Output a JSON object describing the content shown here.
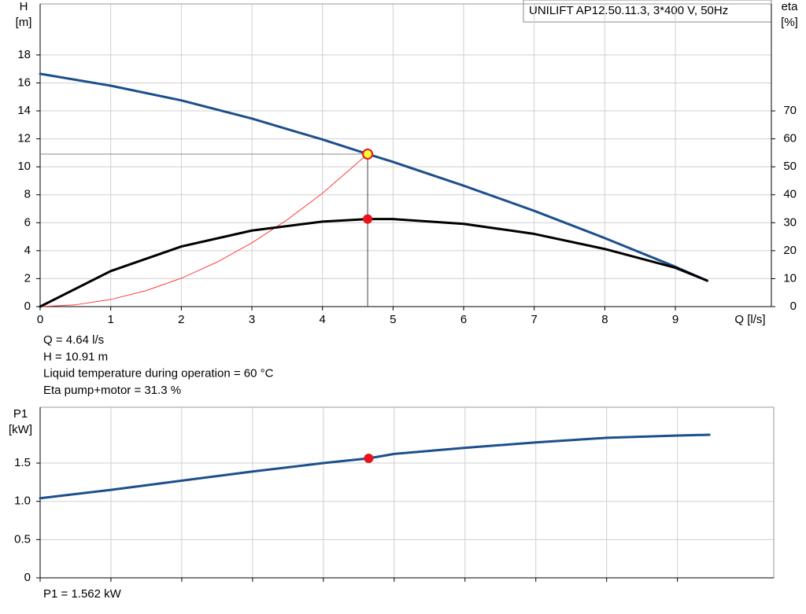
{
  "chart_data": [
    {
      "type": "line",
      "title": "UNILIFT  AP12.50.11.3, 3*400 V, 50Hz",
      "ylabel": "H",
      "yunit": "[m]",
      "y2label": "eta",
      "y2unit": "[%]",
      "xlabel": "Q [l/s]",
      "xlim": [
        0,
        10.36
      ],
      "xticks": [
        0,
        1,
        2,
        3,
        4,
        5,
        6,
        7,
        8,
        9
      ],
      "ylim": [
        0,
        21.65
      ],
      "yticks": [
        0,
        2,
        4,
        6,
        8,
        10,
        12,
        14,
        16,
        18
      ],
      "y2lim": [
        0,
        108.25
      ],
      "y2ticks": [
        0,
        10,
        20,
        30,
        40,
        50,
        60,
        70
      ],
      "grid": true,
      "x": [
        0,
        1,
        2,
        3,
        4,
        4.64,
        5,
        6,
        7,
        8,
        9,
        9.45
      ],
      "series": [
        {
          "color": "#1c4f8c",
          "values": [
            16.65,
            15.8,
            14.75,
            13.45,
            11.95,
            10.91,
            10.35,
            8.65,
            6.85,
            4.9,
            2.85,
            1.85
          ]
        },
        {
          "color": "#000000",
          "axis": "y2",
          "values": [
            0,
            12.7,
            21.5,
            27.2,
            30.4,
            31.3,
            31.3,
            29.6,
            26.0,
            20.6,
            13.9,
            9.3
          ]
        },
        {
          "color": "#ff3b3b",
          "x": [
            0,
            0.5,
            1,
            1.5,
            2,
            2.5,
            3,
            3.5,
            4,
            4.64
          ],
          "values": [
            0,
            0.13,
            0.51,
            1.14,
            2.03,
            3.17,
            4.56,
            6.21,
            8.11,
            10.91
          ]
        }
      ],
      "operating_point": {
        "x": 4.64,
        "y": 10.91,
        "eta": 31.3
      },
      "annotations": [
        "Q = 4.64 l/s",
        "H = 10.91 m",
        "Liquid temperature during operation = 60 °C",
        "Eta pump+motor = 31.3 %"
      ]
    },
    {
      "type": "line",
      "ylabel": "P1",
      "yunit": "[kW]",
      "ylim": [
        0,
        2.23
      ],
      "yticks": [
        0,
        0.5,
        {
          "value": 1,
          "label": "1.0"
        },
        {
          "value": 1.5,
          "label": "1.5"
        }
      ],
      "grid": true,
      "x": [
        0,
        1,
        2,
        3,
        4,
        4.64,
        5,
        6,
        7,
        8,
        9,
        9.45
      ],
      "series": [
        {
          "color": "#1c4f8c",
          "values": [
            1.04,
            1.15,
            1.27,
            1.39,
            1.5,
            1.562,
            1.62,
            1.7,
            1.77,
            1.83,
            1.86,
            1.87
          ]
        }
      ],
      "operating_point": {
        "x": 4.64,
        "y": 1.562
      },
      "annotations": [
        "P1 = 1.562 kW"
      ]
    }
  ]
}
